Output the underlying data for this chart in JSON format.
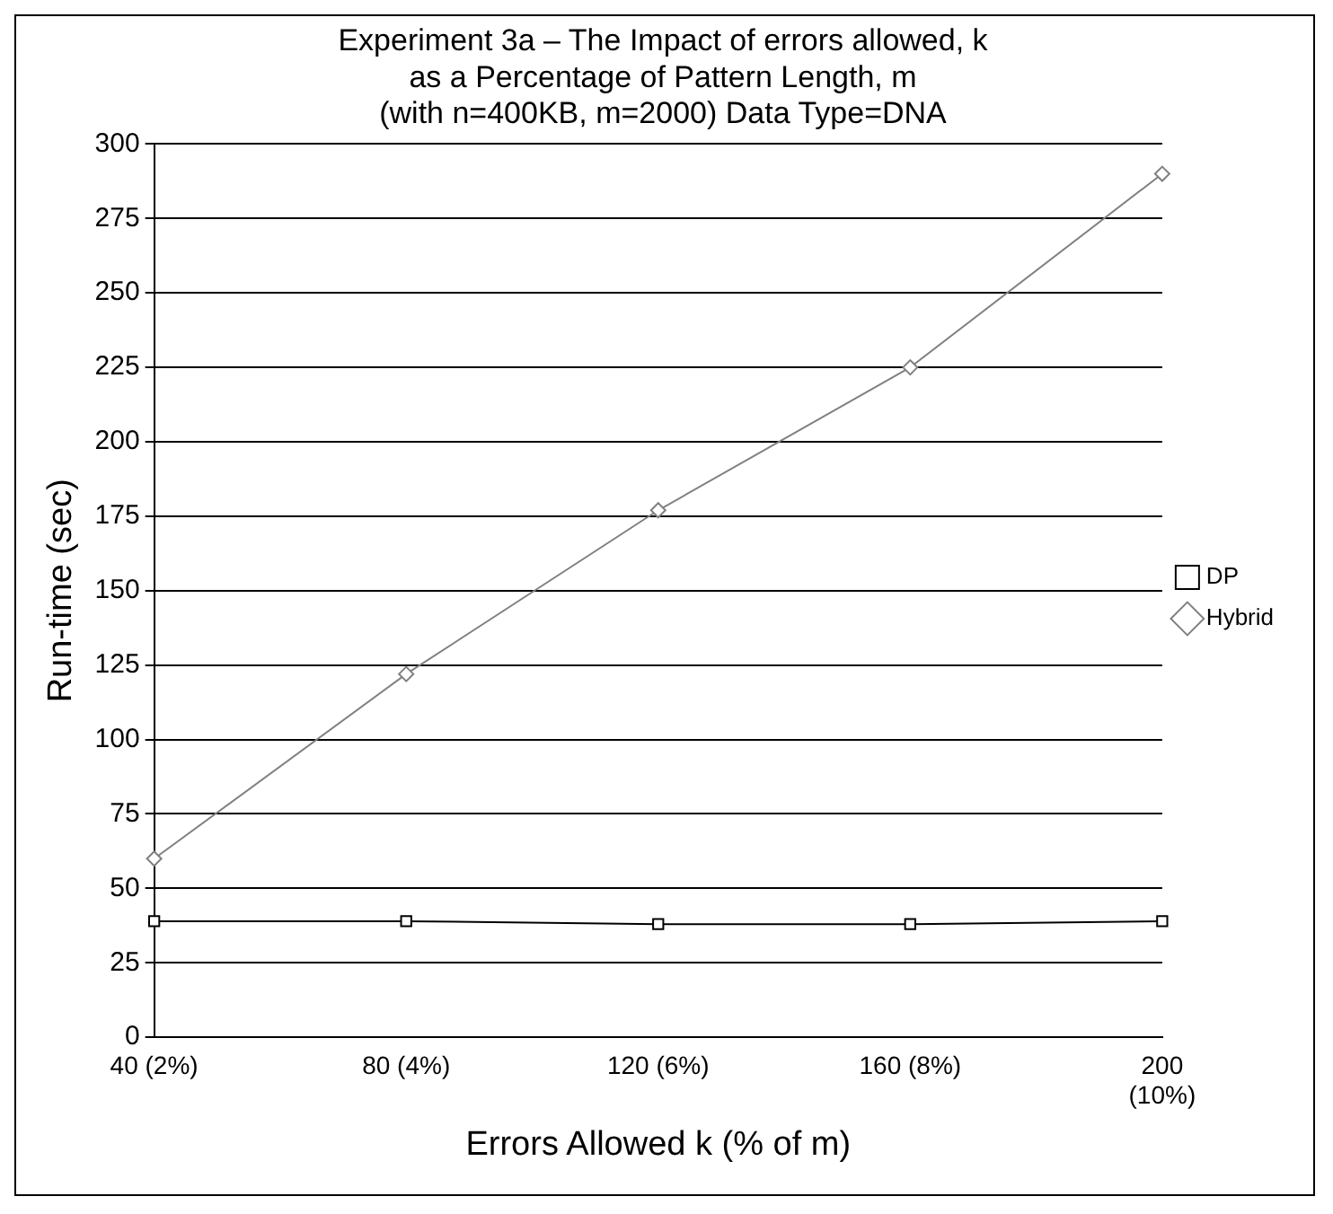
{
  "chart_data": {
    "type": "line",
    "title": "Experiment 3a – The Impact of errors allowed, k\nas a Percentage of Pattern Length, m\n(with n=400KB, m=2000) Data Type=DNA",
    "xlabel": "Errors Allowed k (% of m)",
    "ylabel": "Run-time (sec)",
    "categories": [
      "40 (2%)",
      "80 (4%)",
      "120 (6%)",
      "160 (8%)",
      "200\n(10%)"
    ],
    "series": [
      {
        "name": "DP",
        "color": "#000000",
        "marker": "square",
        "values": [
          39,
          39,
          38,
          38,
          39
        ]
      },
      {
        "name": "Hybrid",
        "color": "#808080",
        "marker": "diamond",
        "values": [
          60,
          122,
          177,
          225,
          290
        ]
      }
    ],
    "ylim": [
      0,
      300
    ],
    "yticks": [
      0,
      25,
      50,
      75,
      100,
      125,
      150,
      175,
      200,
      225,
      250,
      275,
      300
    ],
    "grid": "y",
    "legend": "right",
    "line_style": "solid"
  }
}
